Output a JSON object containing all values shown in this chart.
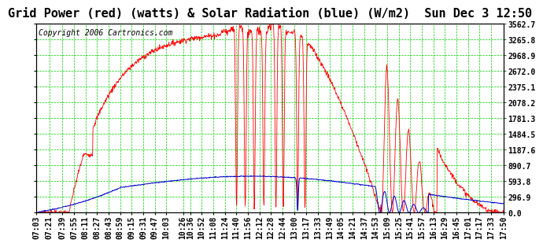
{
  "title": "Grid Power (red) (watts) & Solar Radiation (blue) (W/m2)  Sun Dec 3 12:50",
  "copyright": "Copyright 2006 Cartronics.com",
  "bg_color": "#ffffff",
  "plot_bg_color": "#ffffff",
  "grid_color": "#00cc00",
  "yticks": [
    0.0,
    296.9,
    593.8,
    890.7,
    1187.6,
    1484.5,
    1781.3,
    2078.2,
    2375.1,
    2672.0,
    2968.9,
    3265.8,
    3562.7
  ],
  "ymax": 3562.7,
  "red_color": "#ff0000",
  "blue_color": "#0000cc",
  "title_fontsize": 11,
  "copyright_fontsize": 7,
  "tick_fontsize": 7,
  "xtick_labels": [
    "07:03",
    "07:21",
    "07:39",
    "07:55",
    "08:11",
    "08:27",
    "08:43",
    "08:59",
    "09:15",
    "09:31",
    "09:47",
    "10:03",
    "10:26",
    "10:36",
    "10:52",
    "11:08",
    "11:24",
    "11:40",
    "11:56",
    "12:12",
    "12:28",
    "12:44",
    "13:00",
    "13:17",
    "13:33",
    "13:49",
    "14:05",
    "14:21",
    "14:37",
    "14:53",
    "15:09",
    "15:25",
    "15:41",
    "15:57",
    "16:13",
    "16:29",
    "16:45",
    "17:01",
    "17:17",
    "17:33",
    "17:50"
  ]
}
